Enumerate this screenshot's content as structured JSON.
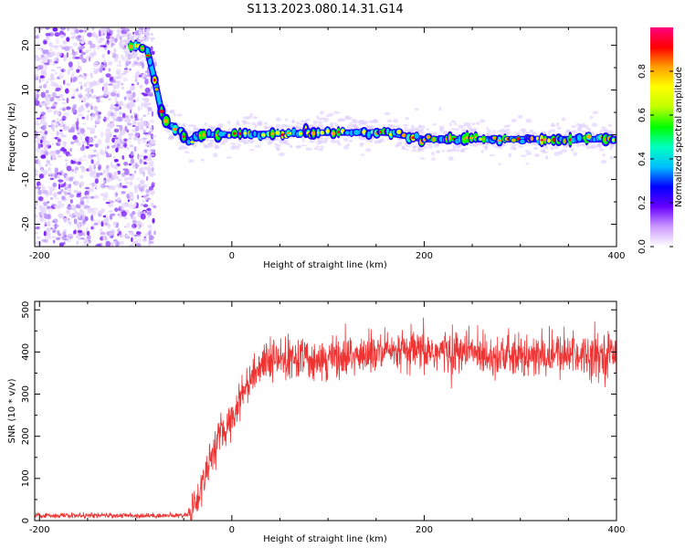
{
  "title": "S113.2023.080.14.31.G14",
  "chart_data": [
    {
      "type": "heatmap",
      "xlabel": "Height of straight line (km)",
      "ylabel": "Frequency (Hz)",
      "xlim": [
        -205,
        400
      ],
      "ylim": [
        -25,
        24
      ],
      "xticks": [
        -200,
        0,
        200,
        400
      ],
      "yticks": [
        -20,
        -10,
        0,
        10,
        20
      ],
      "ytick_labels": [
        "-20",
        "-10",
        "0",
        "10",
        "20"
      ],
      "colorbar": {
        "label": "Normalized spectral amplitude",
        "range": [
          0,
          1
        ],
        "ticks": [
          0.0,
          0.2,
          0.4,
          0.6,
          0.8
        ],
        "tick_labels": [
          "0.0",
          "0.2",
          "0.4",
          "0.6",
          "0.8"
        ],
        "colors": [
          "#ffffff",
          "#cc99ff",
          "#6600ff",
          "#0000ff",
          "#00bfff",
          "#00ffc0",
          "#00ff00",
          "#c0ff00",
          "#ffff00",
          "#ffa000",
          "#ff0000",
          "#ff0080"
        ]
      },
      "noise_region_x": [
        -205,
        -80
      ],
      "ridge": [
        {
          "x": -205,
          "y": 20
        },
        {
          "x": -100,
          "y": 20
        },
        {
          "x": -88,
          "y": 19
        },
        {
          "x": -80,
          "y": 12
        },
        {
          "x": -72,
          "y": 4
        },
        {
          "x": -65,
          "y": 2
        },
        {
          "x": -55,
          "y": 1
        },
        {
          "x": -45,
          "y": -1.5
        },
        {
          "x": -35,
          "y": 0
        },
        {
          "x": 0,
          "y": 0
        },
        {
          "x": 100,
          "y": 0.5
        },
        {
          "x": 160,
          "y": 0.5
        },
        {
          "x": 200,
          "y": -1
        },
        {
          "x": 300,
          "y": -1
        },
        {
          "x": 400,
          "y": -1
        }
      ]
    },
    {
      "type": "line",
      "xlabel": "Height of straight line (km)",
      "ylabel": "SNR (10 * v/v)",
      "xlim": [
        -205,
        400
      ],
      "ylim": [
        0,
        520
      ],
      "xticks": [
        -200,
        0,
        200,
        400
      ],
      "yticks": [
        0,
        100,
        200,
        300,
        400,
        500
      ],
      "series_color": "#ee3333",
      "envelope": [
        {
          "x": -205,
          "y": 12
        },
        {
          "x": -50,
          "y": 12
        },
        {
          "x": -45,
          "y": 18
        },
        {
          "x": -35,
          "y": 55
        },
        {
          "x": -25,
          "y": 130
        },
        {
          "x": -15,
          "y": 190
        },
        {
          "x": 0,
          "y": 240
        },
        {
          "x": 10,
          "y": 300
        },
        {
          "x": 20,
          "y": 340
        },
        {
          "x": 30,
          "y": 370
        },
        {
          "x": 50,
          "y": 380
        },
        {
          "x": 100,
          "y": 385
        },
        {
          "x": 150,
          "y": 395
        },
        {
          "x": 200,
          "y": 400
        },
        {
          "x": 250,
          "y": 400
        },
        {
          "x": 300,
          "y": 385
        },
        {
          "x": 350,
          "y": 395
        },
        {
          "x": 400,
          "y": 395
        }
      ]
    }
  ]
}
